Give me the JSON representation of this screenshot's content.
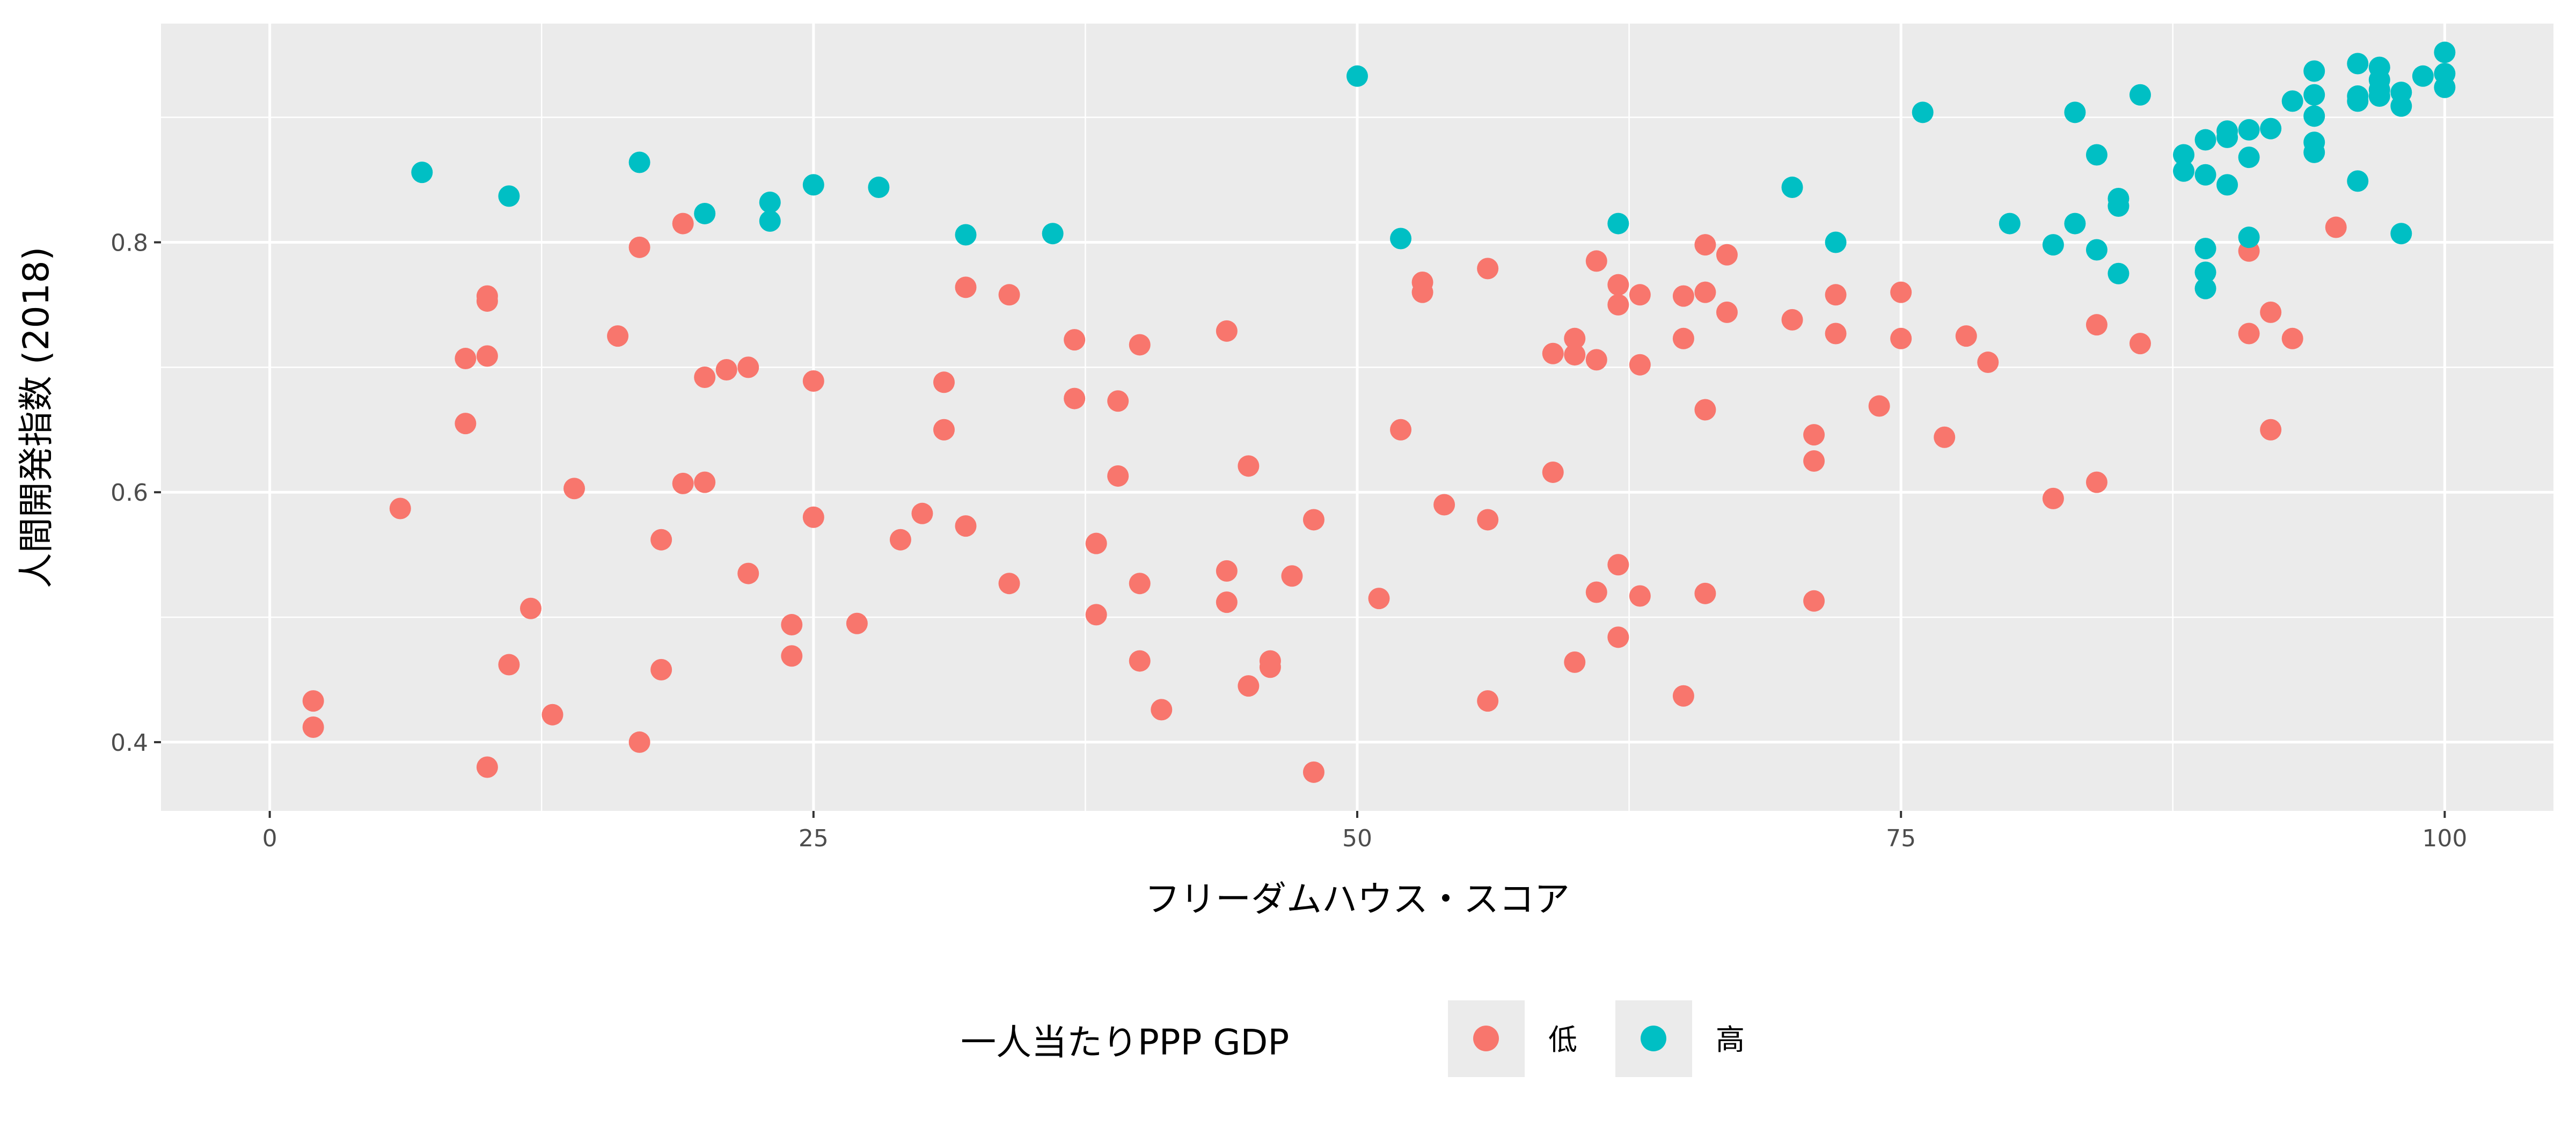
{
  "chart_data": {
    "type": "scatter",
    "xlabel": "フリーダムハウス・スコア",
    "ylabel": "人間開発指数 (2018)",
    "xlim": [
      -5,
      105
    ],
    "ylim": [
      0.345,
      0.975
    ],
    "x_ticks": [
      0,
      25,
      50,
      75,
      100
    ],
    "x_tick_labels": [
      "0",
      "25",
      "50",
      "75",
      "100"
    ],
    "y_ticks": [
      0.4,
      0.6,
      0.8
    ],
    "y_tick_labels": [
      "0.4",
      "0.6",
      "0.8"
    ],
    "grid": true,
    "legend": {
      "title": "一人当たりPPP GDP",
      "position": "bottom"
    },
    "series": [
      {
        "name": "低",
        "color": "#F8766D",
        "points": [
          [
            2,
            0.433
          ],
          [
            2,
            0.412
          ],
          [
            6,
            0.587
          ],
          [
            9,
            0.707
          ],
          [
            9,
            0.655
          ],
          [
            10,
            0.757
          ],
          [
            10,
            0.753
          ],
          [
            10,
            0.709
          ],
          [
            10,
            0.38
          ],
          [
            11,
            0.462
          ],
          [
            12,
            0.507
          ],
          [
            13,
            0.422
          ],
          [
            14,
            0.603
          ],
          [
            16,
            0.725
          ],
          [
            17,
            0.796
          ],
          [
            17,
            0.4
          ],
          [
            18,
            0.562
          ],
          [
            18,
            0.458
          ],
          [
            19,
            0.815
          ],
          [
            19,
            0.607
          ],
          [
            20,
            0.692
          ],
          [
            20,
            0.608
          ],
          [
            21,
            0.698
          ],
          [
            22,
            0.7
          ],
          [
            22,
            0.535
          ],
          [
            24,
            0.494
          ],
          [
            24,
            0.469
          ],
          [
            25,
            0.689
          ],
          [
            25,
            0.58
          ],
          [
            27,
            0.495
          ],
          [
            29,
            0.562
          ],
          [
            30,
            0.583
          ],
          [
            31,
            0.688
          ],
          [
            31,
            0.65
          ],
          [
            32,
            0.764
          ],
          [
            32,
            0.573
          ],
          [
            34,
            0.758
          ],
          [
            34,
            0.527
          ],
          [
            37,
            0.722
          ],
          [
            37,
            0.675
          ],
          [
            38,
            0.559
          ],
          [
            38,
            0.502
          ],
          [
            39,
            0.673
          ],
          [
            39,
            0.613
          ],
          [
            40,
            0.718
          ],
          [
            40,
            0.527
          ],
          [
            40,
            0.465
          ],
          [
            41,
            0.426
          ],
          [
            44,
            0.729
          ],
          [
            44,
            0.537
          ],
          [
            44,
            0.512
          ],
          [
            45,
            0.621
          ],
          [
            45,
            0.445
          ],
          [
            46,
            0.465
          ],
          [
            46,
            0.46
          ],
          [
            47,
            0.533
          ],
          [
            48,
            0.578
          ],
          [
            48,
            0.376
          ],
          [
            51,
            0.515
          ],
          [
            52,
            0.65
          ],
          [
            53,
            0.768
          ],
          [
            53,
            0.76
          ],
          [
            54,
            0.59
          ],
          [
            56,
            0.779
          ],
          [
            56,
            0.578
          ],
          [
            56,
            0.433
          ],
          [
            59,
            0.711
          ],
          [
            59,
            0.616
          ],
          [
            60,
            0.723
          ],
          [
            60,
            0.71
          ],
          [
            60,
            0.464
          ],
          [
            61,
            0.785
          ],
          [
            61,
            0.706
          ],
          [
            61,
            0.52
          ],
          [
            62,
            0.766
          ],
          [
            62,
            0.75
          ],
          [
            62,
            0.542
          ],
          [
            62,
            0.484
          ],
          [
            63,
            0.758
          ],
          [
            63,
            0.702
          ],
          [
            63,
            0.517
          ],
          [
            65,
            0.757
          ],
          [
            65,
            0.723
          ],
          [
            65,
            0.437
          ],
          [
            66,
            0.798
          ],
          [
            66,
            0.76
          ],
          [
            66,
            0.666
          ],
          [
            66,
            0.519
          ],
          [
            67,
            0.79
          ],
          [
            67,
            0.744
          ],
          [
            70,
            0.738
          ],
          [
            71,
            0.646
          ],
          [
            71,
            0.625
          ],
          [
            71,
            0.513
          ],
          [
            72,
            0.758
          ],
          [
            72,
            0.727
          ],
          [
            74,
            0.669
          ],
          [
            75,
            0.76
          ],
          [
            75,
            0.723
          ],
          [
            77,
            0.644
          ],
          [
            78,
            0.725
          ],
          [
            79,
            0.704
          ],
          [
            82,
            0.595
          ],
          [
            84,
            0.734
          ],
          [
            84,
            0.608
          ],
          [
            86,
            0.719
          ],
          [
            91,
            0.793
          ],
          [
            91,
            0.727
          ],
          [
            92,
            0.744
          ],
          [
            92,
            0.65
          ],
          [
            93,
            0.723
          ],
          [
            95,
            0.812
          ]
        ]
      },
      {
        "name": "高",
        "color": "#00BFC4",
        "points": [
          [
            7,
            0.856
          ],
          [
            11,
            0.837
          ],
          [
            17,
            0.864
          ],
          [
            20,
            0.823
          ],
          [
            23,
            0.832
          ],
          [
            23,
            0.817
          ],
          [
            25,
            0.846
          ],
          [
            28,
            0.844
          ],
          [
            32,
            0.806
          ],
          [
            36,
            0.807
          ],
          [
            50,
            0.933
          ],
          [
            52,
            0.803
          ],
          [
            62,
            0.815
          ],
          [
            70,
            0.844
          ],
          [
            72,
            0.8
          ],
          [
            76,
            0.904
          ],
          [
            80,
            0.815
          ],
          [
            82,
            0.798
          ],
          [
            83,
            0.904
          ],
          [
            83,
            0.815
          ],
          [
            84,
            0.87
          ],
          [
            84,
            0.794
          ],
          [
            85,
            0.835
          ],
          [
            85,
            0.829
          ],
          [
            85,
            0.775
          ],
          [
            86,
            0.918
          ],
          [
            88,
            0.87
          ],
          [
            88,
            0.857
          ],
          [
            89,
            0.882
          ],
          [
            89,
            0.854
          ],
          [
            89,
            0.795
          ],
          [
            89,
            0.776
          ],
          [
            89,
            0.763
          ],
          [
            90,
            0.889
          ],
          [
            90,
            0.884
          ],
          [
            90,
            0.846
          ],
          [
            91,
            0.89
          ],
          [
            91,
            0.868
          ],
          [
            91,
            0.804
          ],
          [
            92,
            0.891
          ],
          [
            93,
            0.913
          ],
          [
            94,
            0.937
          ],
          [
            94,
            0.918
          ],
          [
            94,
            0.901
          ],
          [
            94,
            0.88
          ],
          [
            94,
            0.872
          ],
          [
            96,
            0.943
          ],
          [
            96,
            0.917
          ],
          [
            96,
            0.913
          ],
          [
            96,
            0.849
          ],
          [
            97,
            0.94
          ],
          [
            97,
            0.93
          ],
          [
            97,
            0.922
          ],
          [
            97,
            0.917
          ],
          [
            98,
            0.92
          ],
          [
            98,
            0.909
          ],
          [
            98,
            0.807
          ],
          [
            99,
            0.933
          ],
          [
            100,
            0.952
          ],
          [
            100,
            0.935
          ],
          [
            100,
            0.924
          ]
        ]
      }
    ]
  }
}
